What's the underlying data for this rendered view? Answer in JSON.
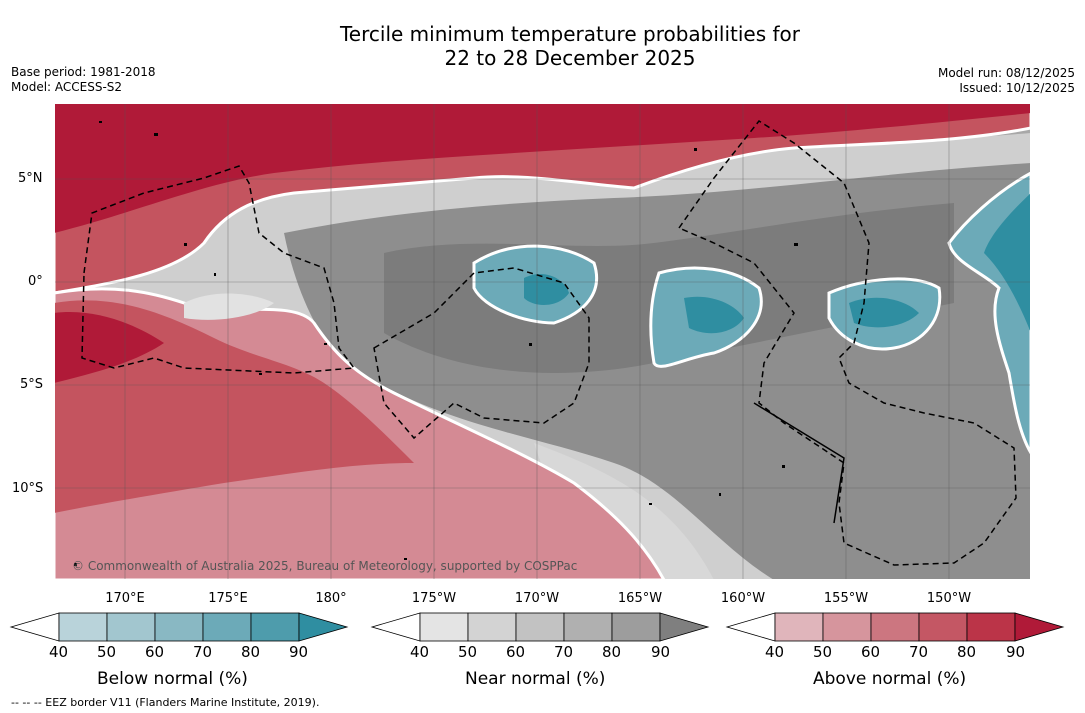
{
  "title_line1": "Tercile minimum temperature probabilities for",
  "title_line2": "22 to 28 December 2025",
  "base_period": "Base period: 1981-2018",
  "model": "Model: ACCESS-S2",
  "model_run": "Model run: 08/12/2025",
  "issued": "Issued: 10/12/2025",
  "credit": "© Commonwealth of Australia 2025, Bureau of Meteorology, supported by COSPPac",
  "lat_labels": [
    "5°N",
    "0°",
    "5°S",
    "10°S"
  ],
  "lon_labels": [
    "170°E",
    "175°E",
    "180°",
    "175°W",
    "170°W",
    "165°W",
    "160°W",
    "155°W",
    "150°W"
  ],
  "colorbars": {
    "below": {
      "title": "Below normal (%)",
      "ticks": [
        "40",
        "50",
        "60",
        "70",
        "80",
        "90"
      ],
      "colors": [
        "#ffffff",
        "#b9d3da",
        "#a2c6cf",
        "#89b8c3",
        "#6caab8",
        "#4e9cac",
        "#2f8ea1"
      ]
    },
    "near": {
      "title": "Near normal (%)",
      "ticks": [
        "40",
        "50",
        "60",
        "70",
        "80",
        "90"
      ],
      "colors": [
        "#ffffff",
        "#e4e4e4",
        "#d3d3d3",
        "#c2c2c2",
        "#b0b0b0",
        "#9d9d9d",
        "#7f7f7f"
      ]
    },
    "above": {
      "title": "Above normal (%)",
      "ticks": [
        "40",
        "50",
        "60",
        "70",
        "80",
        "90"
      ],
      "colors": [
        "#ffffff",
        "#e0b5bb",
        "#d6959d",
        "#cc7680",
        "#c45764",
        "#bb3448",
        "#b01a38"
      ]
    }
  },
  "footer": "--  --  -- EEZ border V11 (Flanders Marine Institute, 2019)."
}
